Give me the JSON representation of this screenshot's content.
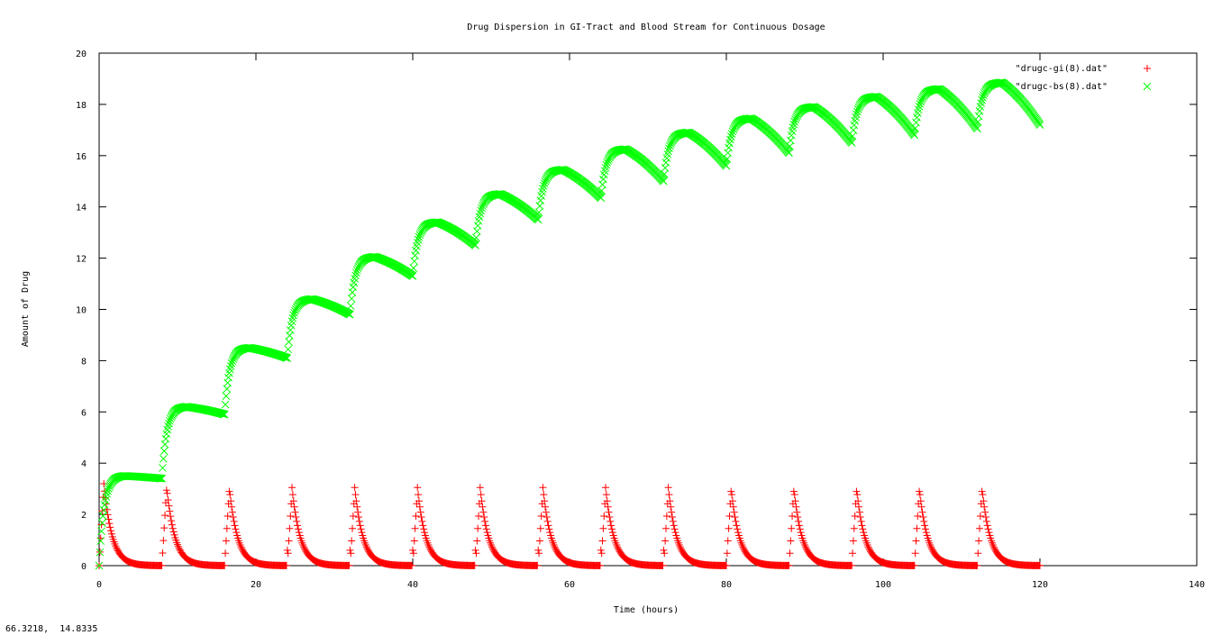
{
  "chart_data": {
    "type": "scatter",
    "title": "Drug Dispersion in GI-Tract and Blood Stream for Continuous Dosage",
    "xlabel": "Time (hours)",
    "ylabel": "Amount of Drug",
    "xlim": [
      0,
      140
    ],
    "ylim": [
      0,
      20
    ],
    "x_ticks": [
      0,
      20,
      40,
      60,
      80,
      100,
      120,
      140
    ],
    "y_ticks": [
      0,
      2,
      4,
      6,
      8,
      10,
      12,
      14,
      16,
      18,
      20
    ],
    "grid": false,
    "legend_position": "top-right",
    "dose_interval_hours": 8,
    "series": [
      {
        "name": "\"drugc-gi(8).dat\"",
        "marker": "plus",
        "color": "#ff0000",
        "model": {
          "type": "gi_tract",
          "dose_peak": 3.2,
          "decay_rate": 0.95,
          "dt": 0.1,
          "t_end": 120
        },
        "cycle_peaks": [
          3.2,
          3.1,
          3.05,
          3.05,
          3.05,
          3.05,
          3.05,
          3.05,
          3.05,
          3.05,
          3.05,
          3.05,
          3.05,
          3.05,
          3.05
        ]
      },
      {
        "name": "\"drugc-bs(8).dat\"",
        "marker": "cross",
        "color": "#00ff00",
        "model": {
          "type": "blood_stream",
          "cycle_minima": [
            0.0,
            3.4,
            5.9,
            8.1,
            9.8,
            11.3,
            12.5,
            13.5,
            14.35,
            15.0,
            15.6,
            16.1,
            16.5,
            16.8,
            17.05,
            17.2
          ]
        },
        "cycle_peaks": [
          3.5,
          6.2,
          8.5,
          10.4,
          12.05,
          13.4,
          14.5,
          15.45,
          16.25,
          16.9,
          17.45,
          17.9,
          18.3,
          18.6,
          18.85
        ]
      }
    ]
  },
  "status": {
    "coordinates": "66.3218,  14.8335"
  }
}
